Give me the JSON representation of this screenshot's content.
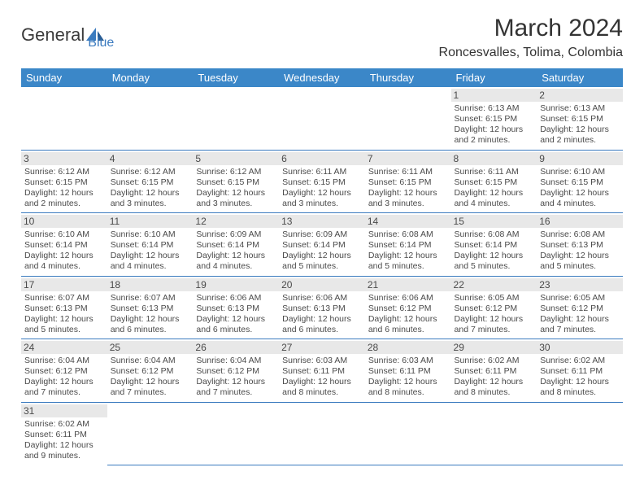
{
  "logo": {
    "part1": "General",
    "part2": "Blue"
  },
  "title": "March 2024",
  "location": "Roncesvalles, Tolima, Colombia",
  "colors": {
    "header_bg": "#3b87c8",
    "header_text": "#ffffff",
    "accent": "#3b7bbf",
    "daynum_bg": "#e8e8e8",
    "text": "#4a4a4a"
  },
  "fonts": {
    "title_size": 30,
    "location_size": 16,
    "th_size": 13,
    "cell_size": 10.5
  },
  "weekdays": [
    "Sunday",
    "Monday",
    "Tuesday",
    "Wednesday",
    "Thursday",
    "Friday",
    "Saturday"
  ],
  "weeks": [
    [
      null,
      null,
      null,
      null,
      null,
      {
        "n": "1",
        "lines": [
          "Sunrise: 6:13 AM",
          "Sunset: 6:15 PM",
          "Daylight: 12 hours",
          "and 2 minutes."
        ]
      },
      {
        "n": "2",
        "lines": [
          "Sunrise: 6:13 AM",
          "Sunset: 6:15 PM",
          "Daylight: 12 hours",
          "and 2 minutes."
        ]
      }
    ],
    [
      {
        "n": "3",
        "lines": [
          "Sunrise: 6:12 AM",
          "Sunset: 6:15 PM",
          "Daylight: 12 hours",
          "and 2 minutes."
        ]
      },
      {
        "n": "4",
        "lines": [
          "Sunrise: 6:12 AM",
          "Sunset: 6:15 PM",
          "Daylight: 12 hours",
          "and 3 minutes."
        ]
      },
      {
        "n": "5",
        "lines": [
          "Sunrise: 6:12 AM",
          "Sunset: 6:15 PM",
          "Daylight: 12 hours",
          "and 3 minutes."
        ]
      },
      {
        "n": "6",
        "lines": [
          "Sunrise: 6:11 AM",
          "Sunset: 6:15 PM",
          "Daylight: 12 hours",
          "and 3 minutes."
        ]
      },
      {
        "n": "7",
        "lines": [
          "Sunrise: 6:11 AM",
          "Sunset: 6:15 PM",
          "Daylight: 12 hours",
          "and 3 minutes."
        ]
      },
      {
        "n": "8",
        "lines": [
          "Sunrise: 6:11 AM",
          "Sunset: 6:15 PM",
          "Daylight: 12 hours",
          "and 4 minutes."
        ]
      },
      {
        "n": "9",
        "lines": [
          "Sunrise: 6:10 AM",
          "Sunset: 6:15 PM",
          "Daylight: 12 hours",
          "and 4 minutes."
        ]
      }
    ],
    [
      {
        "n": "10",
        "lines": [
          "Sunrise: 6:10 AM",
          "Sunset: 6:14 PM",
          "Daylight: 12 hours",
          "and 4 minutes."
        ]
      },
      {
        "n": "11",
        "lines": [
          "Sunrise: 6:10 AM",
          "Sunset: 6:14 PM",
          "Daylight: 12 hours",
          "and 4 minutes."
        ]
      },
      {
        "n": "12",
        "lines": [
          "Sunrise: 6:09 AM",
          "Sunset: 6:14 PM",
          "Daylight: 12 hours",
          "and 4 minutes."
        ]
      },
      {
        "n": "13",
        "lines": [
          "Sunrise: 6:09 AM",
          "Sunset: 6:14 PM",
          "Daylight: 12 hours",
          "and 5 minutes."
        ]
      },
      {
        "n": "14",
        "lines": [
          "Sunrise: 6:08 AM",
          "Sunset: 6:14 PM",
          "Daylight: 12 hours",
          "and 5 minutes."
        ]
      },
      {
        "n": "15",
        "lines": [
          "Sunrise: 6:08 AM",
          "Sunset: 6:14 PM",
          "Daylight: 12 hours",
          "and 5 minutes."
        ]
      },
      {
        "n": "16",
        "lines": [
          "Sunrise: 6:08 AM",
          "Sunset: 6:13 PM",
          "Daylight: 12 hours",
          "and 5 minutes."
        ]
      }
    ],
    [
      {
        "n": "17",
        "lines": [
          "Sunrise: 6:07 AM",
          "Sunset: 6:13 PM",
          "Daylight: 12 hours",
          "and 5 minutes."
        ]
      },
      {
        "n": "18",
        "lines": [
          "Sunrise: 6:07 AM",
          "Sunset: 6:13 PM",
          "Daylight: 12 hours",
          "and 6 minutes."
        ]
      },
      {
        "n": "19",
        "lines": [
          "Sunrise: 6:06 AM",
          "Sunset: 6:13 PM",
          "Daylight: 12 hours",
          "and 6 minutes."
        ]
      },
      {
        "n": "20",
        "lines": [
          "Sunrise: 6:06 AM",
          "Sunset: 6:13 PM",
          "Daylight: 12 hours",
          "and 6 minutes."
        ]
      },
      {
        "n": "21",
        "lines": [
          "Sunrise: 6:06 AM",
          "Sunset: 6:12 PM",
          "Daylight: 12 hours",
          "and 6 minutes."
        ]
      },
      {
        "n": "22",
        "lines": [
          "Sunrise: 6:05 AM",
          "Sunset: 6:12 PM",
          "Daylight: 12 hours",
          "and 7 minutes."
        ]
      },
      {
        "n": "23",
        "lines": [
          "Sunrise: 6:05 AM",
          "Sunset: 6:12 PM",
          "Daylight: 12 hours",
          "and 7 minutes."
        ]
      }
    ],
    [
      {
        "n": "24",
        "lines": [
          "Sunrise: 6:04 AM",
          "Sunset: 6:12 PM",
          "Daylight: 12 hours",
          "and 7 minutes."
        ]
      },
      {
        "n": "25",
        "lines": [
          "Sunrise: 6:04 AM",
          "Sunset: 6:12 PM",
          "Daylight: 12 hours",
          "and 7 minutes."
        ]
      },
      {
        "n": "26",
        "lines": [
          "Sunrise: 6:04 AM",
          "Sunset: 6:12 PM",
          "Daylight: 12 hours",
          "and 7 minutes."
        ]
      },
      {
        "n": "27",
        "lines": [
          "Sunrise: 6:03 AM",
          "Sunset: 6:11 PM",
          "Daylight: 12 hours",
          "and 8 minutes."
        ]
      },
      {
        "n": "28",
        "lines": [
          "Sunrise: 6:03 AM",
          "Sunset: 6:11 PM",
          "Daylight: 12 hours",
          "and 8 minutes."
        ]
      },
      {
        "n": "29",
        "lines": [
          "Sunrise: 6:02 AM",
          "Sunset: 6:11 PM",
          "Daylight: 12 hours",
          "and 8 minutes."
        ]
      },
      {
        "n": "30",
        "lines": [
          "Sunrise: 6:02 AM",
          "Sunset: 6:11 PM",
          "Daylight: 12 hours",
          "and 8 minutes."
        ]
      }
    ],
    [
      {
        "n": "31",
        "lines": [
          "Sunrise: 6:02 AM",
          "Sunset: 6:11 PM",
          "Daylight: 12 hours",
          "and 9 minutes."
        ]
      },
      null,
      null,
      null,
      null,
      null,
      null
    ]
  ]
}
